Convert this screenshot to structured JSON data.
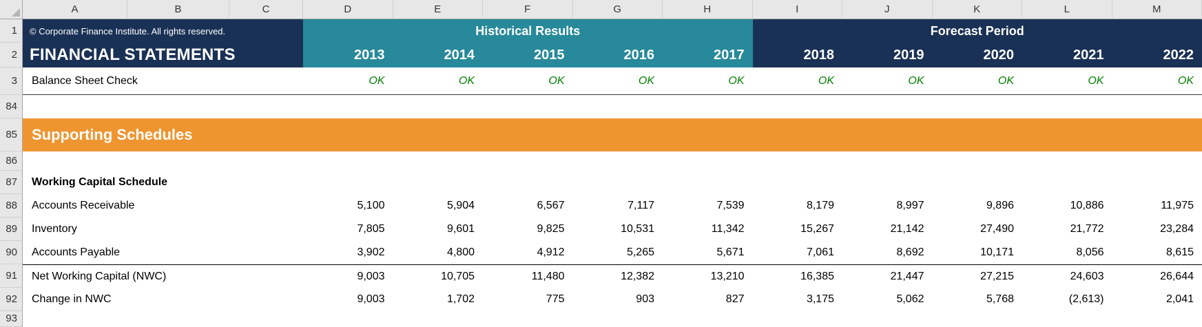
{
  "columns": [
    "A",
    "B",
    "C",
    "D",
    "E",
    "F",
    "G",
    "H",
    "I",
    "J",
    "K",
    "L",
    "M"
  ],
  "row_numbers": [
    "1",
    "2",
    "3",
    "84",
    "85",
    "86",
    "87",
    "88",
    "89",
    "90",
    "91",
    "92",
    "93"
  ],
  "header": {
    "copyright": "© Corporate Finance Institute. All rights reserved.",
    "title": "FINANCIAL STATEMENTS",
    "historical_label": "Historical Results",
    "forecast_label": "Forecast Period",
    "historical_years": [
      "2013",
      "2014",
      "2015",
      "2016",
      "2017"
    ],
    "forecast_years": [
      "2018",
      "2019",
      "2020",
      "2021",
      "2022"
    ]
  },
  "check_row": {
    "label": "Balance Sheet Check",
    "values": [
      "OK",
      "OK",
      "OK",
      "OK",
      "OK",
      "OK",
      "OK",
      "OK",
      "OK",
      "OK"
    ]
  },
  "section_banner": "Supporting Schedules",
  "schedule": {
    "title": "Working Capital Schedule",
    "rows": [
      {
        "label": "Accounts Receivable",
        "values": [
          "5,100",
          "5,904",
          "6,567",
          "7,117",
          "7,539",
          "8,179",
          "8,997",
          "9,896",
          "10,886",
          "11,975"
        ],
        "total": false
      },
      {
        "label": "Inventory",
        "values": [
          "7,805",
          "9,601",
          "9,825",
          "10,531",
          "11,342",
          "15,267",
          "21,142",
          "27,490",
          "21,772",
          "23,284"
        ],
        "total": false
      },
      {
        "label": "Accounts Payable",
        "values": [
          "3,902",
          "4,800",
          "4,912",
          "5,265",
          "5,671",
          "7,061",
          "8,692",
          "10,171",
          "8,056",
          "8,615"
        ],
        "total": false
      },
      {
        "label": "Net Working Capital (NWC)",
        "values": [
          "9,003",
          "10,705",
          "11,480",
          "12,382",
          "13,210",
          "16,385",
          "21,447",
          "27,215",
          "24,603",
          "26,644"
        ],
        "total": true
      },
      {
        "label": "Change in NWC",
        "values": [
          "9,003",
          "1,702",
          "775",
          "903",
          "827",
          "3,175",
          "5,062",
          "5,768",
          "(2,613)",
          "2,041"
        ],
        "total": false
      }
    ]
  },
  "colors": {
    "navy": "#1a3156",
    "teal": "#27899a",
    "orange": "#ee9530",
    "ok_green": "#008000"
  }
}
